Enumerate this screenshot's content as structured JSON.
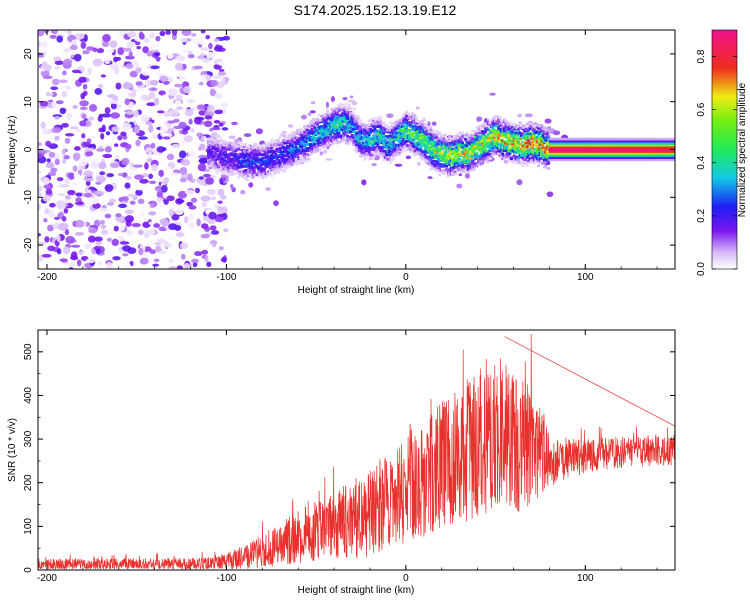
{
  "figure": {
    "title": "S174.2025.152.13.19.E12"
  },
  "chart_data": [
    {
      "type": "heatmap",
      "title": "S174.2025.152.13.19.E12",
      "xlabel": "Height of straight line (km)",
      "ylabel": "Frequency (Hz)",
      "xlim": [
        -205,
        150
      ],
      "ylim": [
        -25,
        25
      ],
      "xticks": [
        -200,
        -100,
        0,
        100
      ],
      "yticks": [
        -20,
        -10,
        0,
        10,
        20
      ],
      "colorbar": {
        "label": "Normalized spectral amplitude",
        "range": [
          0.0,
          0.9
        ],
        "ticks": [
          0.0,
          0.2,
          0.4,
          0.6,
          0.8
        ],
        "colormap": "rainbow (white-violet-blue-cyan-green-yellow-red-pink)"
      },
      "ridge": {
        "x": [
          -110,
          -100,
          -90,
          -80,
          -70,
          -60,
          -50,
          -40,
          -35,
          -30,
          -25,
          -20,
          -15,
          -10,
          -5,
          0,
          5,
          10,
          15,
          20,
          25,
          30,
          35,
          40,
          45,
          50,
          55,
          60,
          65,
          70,
          75,
          80,
          100,
          150
        ],
        "frequency": [
          -0.5,
          -1.5,
          -2.5,
          -2.5,
          -1.0,
          0.5,
          3.0,
          5.0,
          5.5,
          5.0,
          2.0,
          2.0,
          3.0,
          1.0,
          2.5,
          4.0,
          3.0,
          2.0,
          0.0,
          -1.0,
          -1.5,
          -0.5,
          -1.0,
          0.5,
          1.5,
          3.0,
          2.0,
          1.5,
          1.0,
          1.5,
          1.0,
          0.0,
          0.0,
          0.0
        ],
        "amplitude": [
          0.2,
          0.25,
          0.3,
          0.3,
          0.3,
          0.35,
          0.4,
          0.5,
          0.5,
          0.4,
          0.4,
          0.45,
          0.5,
          0.45,
          0.5,
          0.55,
          0.6,
          0.6,
          0.65,
          0.7,
          0.7,
          0.7,
          0.7,
          0.7,
          0.75,
          0.75,
          0.75,
          0.8,
          0.8,
          0.85,
          0.85,
          0.9,
          0.9,
          0.85
        ]
      },
      "noise_region": {
        "x_range": [
          -205,
          -110
        ],
        "frequency_range": [
          -25,
          25
        ],
        "amplitude_range": [
          0.0,
          0.15
        ]
      }
    },
    {
      "type": "line",
      "xlabel": "Height of straight line (km)",
      "ylabel": "SNR (10 * v/v)",
      "xlim": [
        -205,
        150
      ],
      "ylim": [
        0,
        550
      ],
      "xticks": [
        -200,
        -100,
        0,
        100
      ],
      "yticks": [
        0,
        100,
        200,
        300,
        400,
        500
      ],
      "color": "#e8302c",
      "series": [
        {
          "x": [
            -205,
            -190,
            -170,
            -150,
            -130,
            -110,
            -100,
            -90,
            -80,
            -70,
            -60,
            -50,
            -40,
            -30,
            -20,
            -10,
            0,
            10,
            20,
            30,
            40,
            50,
            55,
            60,
            70,
            75,
            80,
            90,
            100,
            110,
            120,
            130,
            140,
            150
          ],
          "values": [
            12,
            12,
            12,
            13,
            13,
            15,
            20,
            30,
            45,
            60,
            75,
            90,
            105,
            115,
            130,
            150,
            190,
            215,
            240,
            265,
            290,
            300,
            320,
            295,
            290,
            270,
            250,
            255,
            260,
            265,
            270,
            270,
            275,
            275
          ],
          "spread": [
            14,
            14,
            14,
            14,
            14,
            16,
            20,
            30,
            40,
            50,
            60,
            70,
            80,
            90,
            100,
            115,
            130,
            140,
            150,
            160,
            170,
            180,
            180,
            170,
            140,
            100,
            60,
            45,
            40,
            38,
            36,
            36,
            36,
            36
          ],
          "max_peak": {
            "x": 55,
            "value": 535
          }
        }
      ]
    }
  ]
}
